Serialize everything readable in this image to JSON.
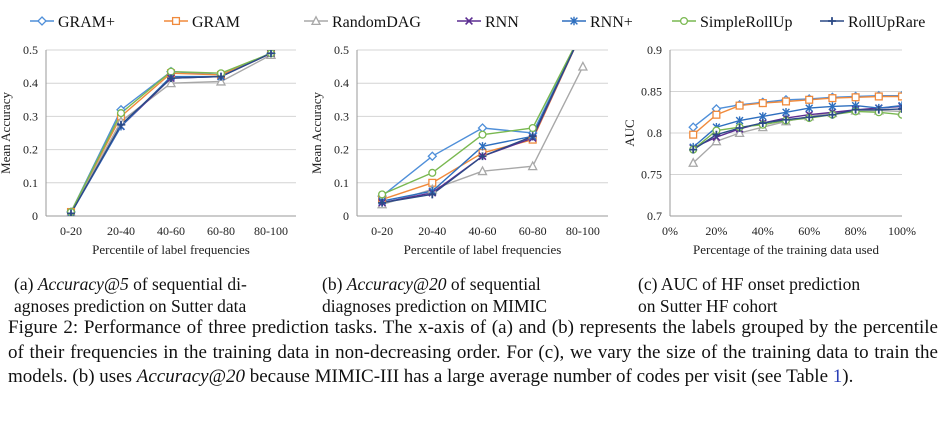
{
  "legend": [
    {
      "name": "GRAM+",
      "color": "#4f8fd9",
      "marker": "diamond"
    },
    {
      "name": "GRAM",
      "color": "#f08a3c",
      "marker": "square"
    },
    {
      "name": "RandomDAG",
      "color": "#a8a8a8",
      "marker": "triangle"
    },
    {
      "name": "RNN",
      "color": "#5b2d91",
      "marker": "x"
    },
    {
      "name": "RNN+",
      "color": "#2e6fbf",
      "marker": "star"
    },
    {
      "name": "SimpleRollUp",
      "color": "#79b850",
      "marker": "circle"
    },
    {
      "name": "RollUpRare",
      "color": "#2c4a86",
      "marker": "plus"
    }
  ],
  "chart_data": [
    {
      "type": "line",
      "xlabel": "Percentile of label frequencies",
      "ylabel": "Mean Accuracy",
      "categories": [
        "0-20",
        "20-40",
        "40-60",
        "60-80",
        "80-100"
      ],
      "ylim": [
        0,
        0.5
      ],
      "yticks": [
        "0",
        "0.1",
        "0.2",
        "0.3",
        "0.4",
        "0.5"
      ],
      "grid": true,
      "series": [
        {
          "name": "GRAM+",
          "values": [
            0.012,
            0.32,
            0.435,
            0.425,
            0.49
          ]
        },
        {
          "name": "GRAM",
          "values": [
            0.012,
            0.3,
            0.43,
            0.425,
            0.49
          ]
        },
        {
          "name": "RandomDAG",
          "values": [
            0.01,
            0.285,
            0.4,
            0.405,
            0.485
          ]
        },
        {
          "name": "RNN",
          "values": [
            0.008,
            0.27,
            0.415,
            0.42,
            0.49
          ]
        },
        {
          "name": "RNN+",
          "values": [
            0.008,
            0.27,
            0.42,
            0.42,
            0.492
          ]
        },
        {
          "name": "SimpleRollUp",
          "values": [
            0.012,
            0.31,
            0.435,
            0.43,
            0.49
          ]
        },
        {
          "name": "RollUpRare",
          "values": [
            0.008,
            0.275,
            0.415,
            0.42,
            0.49
          ]
        }
      ]
    },
    {
      "type": "line",
      "xlabel": "Percentile of label frequencies",
      "ylabel": "Mean Accuracy",
      "categories": [
        "0-20",
        "20-40",
        "40-60",
        "60-80",
        "80-100"
      ],
      "ylim": [
        0,
        0.5
      ],
      "yticks": [
        "0",
        "0.1",
        "0.2",
        "0.3",
        "0.4",
        "0.5"
      ],
      "grid": true,
      "series": [
        {
          "name": "GRAM+",
          "values": [
            0.06,
            0.18,
            0.265,
            0.25,
            0.56
          ]
        },
        {
          "name": "GRAM",
          "values": [
            0.05,
            0.1,
            0.19,
            0.23,
            0.56
          ]
        },
        {
          "name": "RandomDAG",
          "values": [
            0.035,
            0.08,
            0.135,
            0.15,
            0.45
          ]
        },
        {
          "name": "RNN",
          "values": [
            0.04,
            0.07,
            0.18,
            0.235,
            0.56
          ]
        },
        {
          "name": "RNN+",
          "values": [
            0.045,
            0.075,
            0.21,
            0.24,
            0.56
          ]
        },
        {
          "name": "SimpleRollUp",
          "values": [
            0.065,
            0.13,
            0.245,
            0.265,
            0.56
          ]
        },
        {
          "name": "RollUpRare",
          "values": [
            0.04,
            0.065,
            0.18,
            0.24,
            0.56
          ]
        }
      ]
    },
    {
      "type": "line",
      "xlabel": "Percentage of the training data used",
      "ylabel": "AUC",
      "x": [
        10,
        20,
        30,
        40,
        50,
        60,
        70,
        80,
        90,
        100
      ],
      "xticks": [
        "0%",
        "20%",
        "40%",
        "60%",
        "80%",
        "100%"
      ],
      "ylim": [
        0.7,
        0.9
      ],
      "yticks": [
        "0.7",
        "0.75",
        "0.8",
        "0.85",
        "0.9"
      ],
      "grid": true,
      "series": [
        {
          "name": "GRAM+",
          "values": [
            0.807,
            0.829,
            0.834,
            0.837,
            0.84,
            0.841,
            0.843,
            0.844,
            0.845,
            0.845
          ]
        },
        {
          "name": "GRAM",
          "values": [
            0.798,
            0.822,
            0.833,
            0.836,
            0.838,
            0.84,
            0.842,
            0.843,
            0.844,
            0.844
          ]
        },
        {
          "name": "RandomDAG",
          "values": [
            0.764,
            0.79,
            0.8,
            0.807,
            0.814,
            0.82,
            0.824,
            0.827,
            0.827,
            0.826
          ]
        },
        {
          "name": "RNN",
          "values": [
            0.782,
            0.795,
            0.805,
            0.812,
            0.818,
            0.822,
            0.825,
            0.828,
            0.83,
            0.832
          ]
        },
        {
          "name": "RNN+",
          "values": [
            0.783,
            0.807,
            0.815,
            0.82,
            0.825,
            0.83,
            0.832,
            0.833,
            0.83,
            0.833
          ]
        },
        {
          "name": "SimpleRollUp",
          "values": [
            0.78,
            0.803,
            0.807,
            0.81,
            0.815,
            0.818,
            0.822,
            0.826,
            0.825,
            0.822
          ]
        },
        {
          "name": "RollUpRare",
          "values": [
            0.78,
            0.798,
            0.806,
            0.812,
            0.816,
            0.819,
            0.822,
            0.828,
            0.828,
            0.829
          ]
        }
      ]
    }
  ],
  "captions": {
    "a_prefix": "(a) ",
    "a_italic": "Accuracy@5",
    "a_rest1": " of sequential di-",
    "a_line2": "agnoses prediction on Sutter data",
    "b_prefix": "(b) ",
    "b_italic": "Accuracy@20",
    "b_rest1": " of sequential",
    "b_line2": "diagnoses prediction on MIMIC",
    "c_line1": "(c) AUC of HF onset prediction",
    "c_line2": "on Sutter HF cohort",
    "figure_p1": "Figure 2: Performance of three prediction tasks. The x-axis of (a) and (b) represents the labels grouped by the percentile of their frequencies in the training data in non-decreasing order. For (c), we vary the size of the training data to train the models. (b) uses ",
    "figure_italic": "Accuracy@20",
    "figure_p2": " because MIMIC-III has a large average number of codes per visit (see Table ",
    "figure_ref": "1",
    "figure_p3": ")."
  }
}
